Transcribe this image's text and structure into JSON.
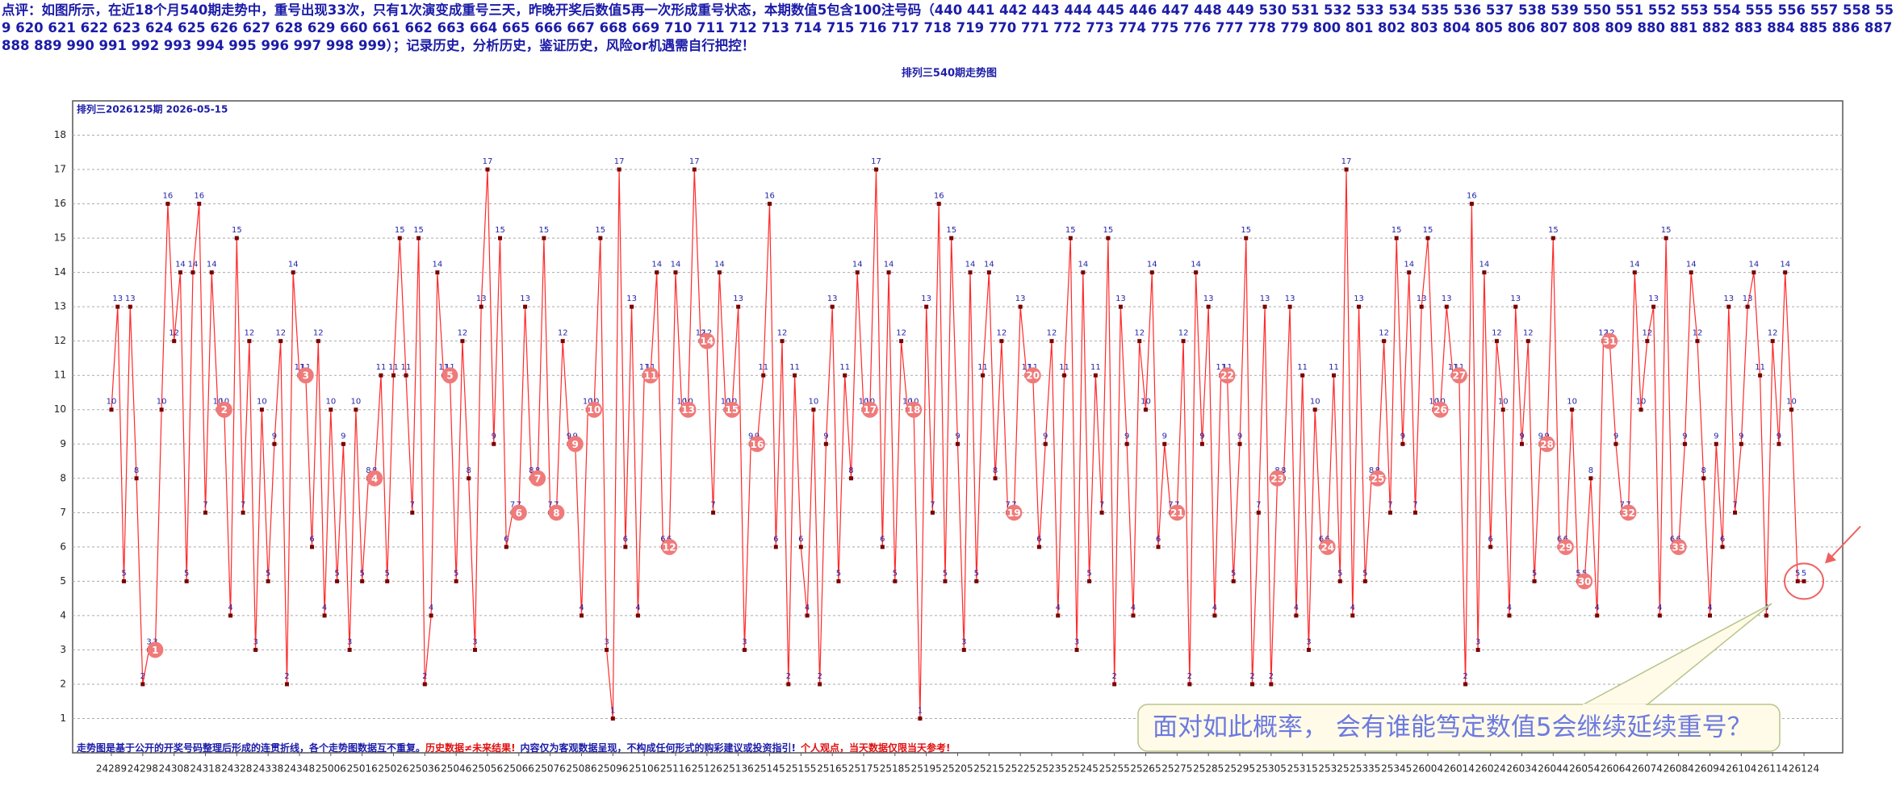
{
  "chart_data": {
    "type": "line",
    "comment": "点评：如图所示，在近18个月540期走势中，重号出现33次，只有1次演变成重号三天，昨晚开奖后数值5再一次形成重号状态，本期数值5包含100注号码（440 441 442 443 444 445 446 447 448 449 530 531 532 533 534 535 536 537 538 539 550 551 552 553 554 555 556 557 558 559 620 621 622 623 624 625 626 627 628 629 660 661 662 663 664 665 666 667 668 669 710 711 712 713 714 715 716 717 718 719 770 771 772 773 774 775 776 777 778 779 800 801 802 803 804 805 806 807 808 809 880 881 882 883 884 885 886 887 888 889 990 991 992 993 994 995 996 997 998 999）；记录历史，分析历史，鉴证历史，风险or机遇需自行把控！",
    "title": "排列三540期走势图",
    "subtitle": "排列三2026125期  2026-05-15",
    "note": [
      "走势图是基于公开的开奖号码整理后形成的连贯折线，各个走势图数据互不重复。",
      "历史数据≠未来结果!",
      "内容仅为客观数据呈现，不构成任何形式的购彩建议或投资指引!",
      "个人观点，当天数据仅限当天参考!"
    ],
    "callout": "面对如此概率， 会有谁能笃定数值5会继续延续重号？",
    "color": "#ff2a2a",
    "marker_color": "#7a0000",
    "repeat_color": "#f07a7a",
    "grid": true,
    "ylim": [
      0,
      19
    ],
    "yticks": [
      1,
      2,
      3,
      4,
      5,
      6,
      7,
      8,
      9,
      10,
      11,
      12,
      13,
      14,
      15,
      16,
      17,
      18
    ],
    "categories": [
      "24289",
      null,
      null,
      null,
      null,
      "24298",
      null,
      null,
      null,
      null,
      "24308",
      null,
      null,
      null,
      null,
      "24318",
      null,
      null,
      null,
      null,
      "24328",
      null,
      null,
      null,
      null,
      "24338",
      null,
      null,
      null,
      null,
      "24348",
      null,
      null,
      null,
      null,
      "25006",
      null,
      null,
      null,
      null,
      "25016",
      null,
      null,
      null,
      null,
      "25026",
      null,
      null,
      null,
      null,
      "25036",
      null,
      null,
      null,
      null,
      "25046",
      null,
      null,
      null,
      null,
      "25056",
      null,
      null,
      null,
      null,
      "25066",
      null,
      null,
      null,
      null,
      "25076",
      null,
      null,
      null,
      null,
      "25086",
      null,
      null,
      null,
      null,
      "25096",
      null,
      null,
      null,
      null,
      "25106",
      null,
      null,
      null,
      null,
      "25116",
      null,
      null,
      null,
      null,
      "25126",
      null,
      null,
      null,
      null,
      "25136",
      null,
      null,
      null,
      null,
      "25145",
      null,
      null,
      null,
      null,
      "25155",
      null,
      null,
      null,
      null,
      "25165",
      null,
      null,
      null,
      null,
      "25175",
      null,
      null,
      null,
      null,
      "25185",
      null,
      null,
      null,
      null,
      "25195",
      null,
      null,
      null,
      null,
      "25205",
      null,
      null,
      null,
      null,
      "25215",
      null,
      null,
      null,
      null,
      "25225",
      null,
      null,
      null,
      null,
      "25235",
      null,
      null,
      null,
      null,
      "25245",
      null,
      null,
      null,
      null,
      "25255",
      null,
      null,
      null,
      null,
      "25265",
      null,
      null,
      null,
      null,
      "25275",
      null,
      null,
      null,
      null,
      "25285",
      null,
      null,
      null,
      null,
      "25295",
      null,
      null,
      null,
      null,
      "25305",
      null,
      null,
      null,
      null,
      "25315",
      null,
      null,
      null,
      null,
      "25325",
      null,
      null,
      null,
      null,
      "25335",
      null,
      null,
      null,
      null,
      "25345",
      null,
      null,
      null,
      null,
      "26004",
      null,
      null,
      null,
      null,
      "26014",
      null,
      null,
      null,
      null,
      "26024",
      null,
      null,
      null,
      null,
      "26034",
      null,
      null,
      null,
      null,
      "26044",
      null,
      null,
      null,
      null,
      "26054",
      null,
      null,
      null,
      null,
      "26064",
      null,
      null,
      null,
      null,
      "26074",
      null,
      null,
      null,
      null,
      "26084",
      null,
      null,
      null,
      null,
      "26094",
      null,
      null,
      null,
      null,
      "26104",
      null,
      null,
      null,
      null,
      "26114",
      null,
      null,
      null,
      null,
      "26124"
    ],
    "values": [
      10,
      13,
      5,
      13,
      8,
      2,
      3,
      3,
      10,
      16,
      12,
      14,
      5,
      14,
      16,
      7,
      14,
      10,
      10,
      4,
      15,
      7,
      12,
      3,
      10,
      5,
      9,
      12,
      2,
      14,
      11,
      11,
      6,
      12,
      4,
      10,
      5,
      9,
      3,
      10,
      5,
      8,
      8,
      11,
      5,
      11,
      15,
      11,
      7,
      15,
      2,
      4,
      14,
      11,
      11,
      5,
      12,
      8,
      3,
      13,
      17,
      9,
      15,
      6,
      7,
      7,
      13,
      8,
      8,
      15,
      7,
      7,
      12,
      9,
      9,
      4,
      10,
      10,
      15,
      3,
      1,
      17,
      6,
      13,
      4,
      11,
      11,
      14,
      6,
      6,
      14,
      10,
      10,
      17,
      12,
      12,
      7,
      14,
      10,
      10,
      13,
      3,
      9,
      9,
      11,
      16,
      6,
      12,
      2,
      11,
      6,
      4,
      10,
      2,
      9,
      13,
      5,
      11,
      8,
      14,
      10,
      10,
      17,
      6,
      14,
      5,
      12,
      10,
      10,
      1,
      13,
      7,
      16,
      5,
      15,
      9,
      3,
      14,
      5,
      11,
      14,
      8,
      12,
      7,
      7,
      13,
      11,
      11,
      6,
      9,
      12,
      4,
      11,
      15,
      3,
      14,
      5,
      11,
      7,
      15,
      2,
      13,
      9,
      4,
      12,
      10,
      14,
      6,
      9,
      7,
      7,
      12,
      2,
      14,
      9,
      13,
      4,
      11,
      11,
      5,
      9,
      15,
      2,
      7,
      13,
      2,
      8,
      8,
      13,
      4,
      11,
      3,
      10,
      6,
      6,
      11,
      5,
      17,
      4,
      13,
      5,
      8,
      8,
      12,
      7,
      15,
      9,
      14,
      7,
      13,
      15,
      10,
      10,
      13,
      11,
      11,
      2,
      16,
      3,
      14,
      6,
      12,
      10,
      4,
      13,
      9,
      12,
      5,
      9,
      9,
      15,
      6,
      6,
      10,
      5,
      5,
      8,
      4,
      12,
      12,
      9,
      7,
      7,
      14,
      10,
      12,
      13,
      4,
      15,
      6,
      6,
      9,
      14,
      12,
      8,
      4,
      9,
      6,
      13,
      7,
      9,
      13,
      14,
      11,
      4,
      12,
      9,
      14,
      10,
      5,
      5
    ],
    "repeats": [
      null,
      null,
      null,
      null,
      null,
      null,
      null,
      1,
      null,
      null,
      null,
      null,
      null,
      null,
      null,
      null,
      null,
      null,
      2,
      null,
      null,
      null,
      null,
      null,
      null,
      null,
      null,
      null,
      null,
      null,
      null,
      3,
      null,
      null,
      null,
      null,
      null,
      null,
      null,
      null,
      null,
      null,
      4,
      null,
      null,
      null,
      null,
      null,
      null,
      null,
      null,
      null,
      null,
      null,
      5,
      null,
      null,
      null,
      null,
      null,
      null,
      null,
      null,
      null,
      null,
      6,
      null,
      null,
      7,
      null,
      null,
      8,
      null,
      null,
      9,
      null,
      null,
      10,
      null,
      null,
      null,
      null,
      null,
      null,
      null,
      null,
      11,
      null,
      null,
      12,
      null,
      null,
      13,
      null,
      null,
      14,
      null,
      null,
      null,
      15,
      null,
      null,
      null,
      16,
      null,
      null,
      null,
      null,
      null,
      null,
      null,
      null,
      null,
      null,
      null,
      null,
      null,
      null,
      null,
      null,
      null,
      17,
      null,
      null,
      null,
      null,
      null,
      null,
      18,
      null,
      null,
      null,
      null,
      null,
      null,
      null,
      null,
      null,
      null,
      null,
      null,
      null,
      null,
      null,
      19,
      null,
      null,
      20,
      null,
      null,
      null,
      null,
      null,
      null,
      null,
      null,
      null,
      null,
      null,
      null,
      null,
      null,
      null,
      null,
      null,
      null,
      null,
      null,
      null,
      null,
      21,
      null,
      null,
      null,
      null,
      null,
      null,
      null,
      22,
      null,
      null,
      null,
      null,
      null,
      null,
      null,
      23,
      null,
      null,
      null,
      null,
      null,
      null,
      null,
      24,
      null,
      null,
      null,
      null,
      null,
      null,
      null,
      25,
      null,
      null,
      null,
      null,
      null,
      null,
      null,
      null,
      null,
      26,
      null,
      null,
      27,
      null,
      null,
      null,
      null,
      null,
      null,
      null,
      null,
      null,
      null,
      null,
      null,
      null,
      28,
      null,
      null,
      29,
      null,
      null,
      30,
      null,
      null,
      null,
      31,
      null,
      null,
      32,
      null,
      null,
      null,
      null,
      null,
      null,
      null,
      33,
      null,
      null,
      null,
      null,
      null,
      null,
      null,
      null,
      null,
      null,
      null,
      null,
      null,
      null,
      null,
      null,
      null,
      null,
      null,
      null
    ]
  }
}
